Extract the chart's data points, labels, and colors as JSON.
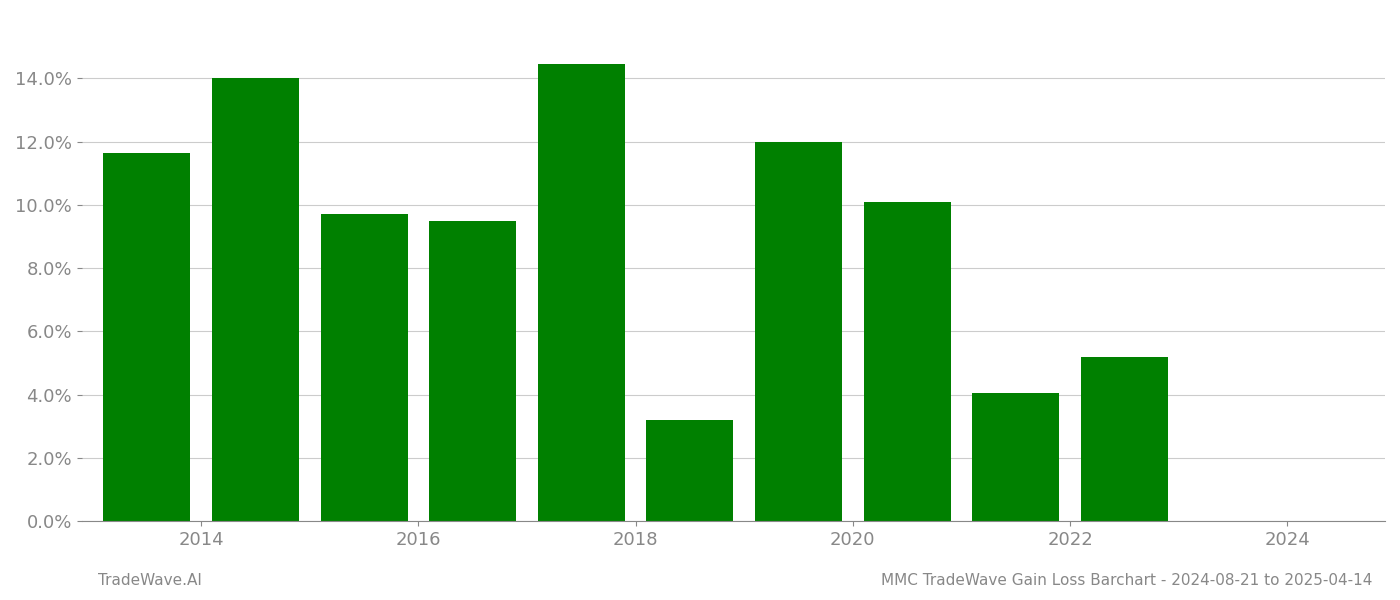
{
  "years": [
    2013,
    2014,
    2015,
    2016,
    2017,
    2018,
    2019,
    2020,
    2021,
    2022,
    2023
  ],
  "values": [
    0.1165,
    0.14,
    0.097,
    0.095,
    0.1445,
    0.032,
    0.12,
    0.101,
    0.0405,
    0.052,
    0.0
  ],
  "bar_color": "#008000",
  "background_color": "#ffffff",
  "ylim": [
    0,
    0.16
  ],
  "yticks": [
    0.0,
    0.02,
    0.04,
    0.06,
    0.08,
    0.1,
    0.12,
    0.14
  ],
  "xtick_positions": [
    2013.5,
    2015.5,
    2017.5,
    2019.5,
    2021.5,
    2023.5
  ],
  "xtick_labels": [
    "2014",
    "2016",
    "2018",
    "2020",
    "2022",
    "2024"
  ],
  "xlabel": "",
  "ylabel": "",
  "footer_left": "TradeWave.AI",
  "footer_right": "MMC TradeWave Gain Loss Barchart - 2024-08-21 to 2025-04-14",
  "bar_width": 0.8,
  "grid_color": "#cccccc",
  "grid_linewidth": 0.8,
  "footer_fontsize": 11,
  "tick_fontsize": 13,
  "tick_color": "#888888"
}
